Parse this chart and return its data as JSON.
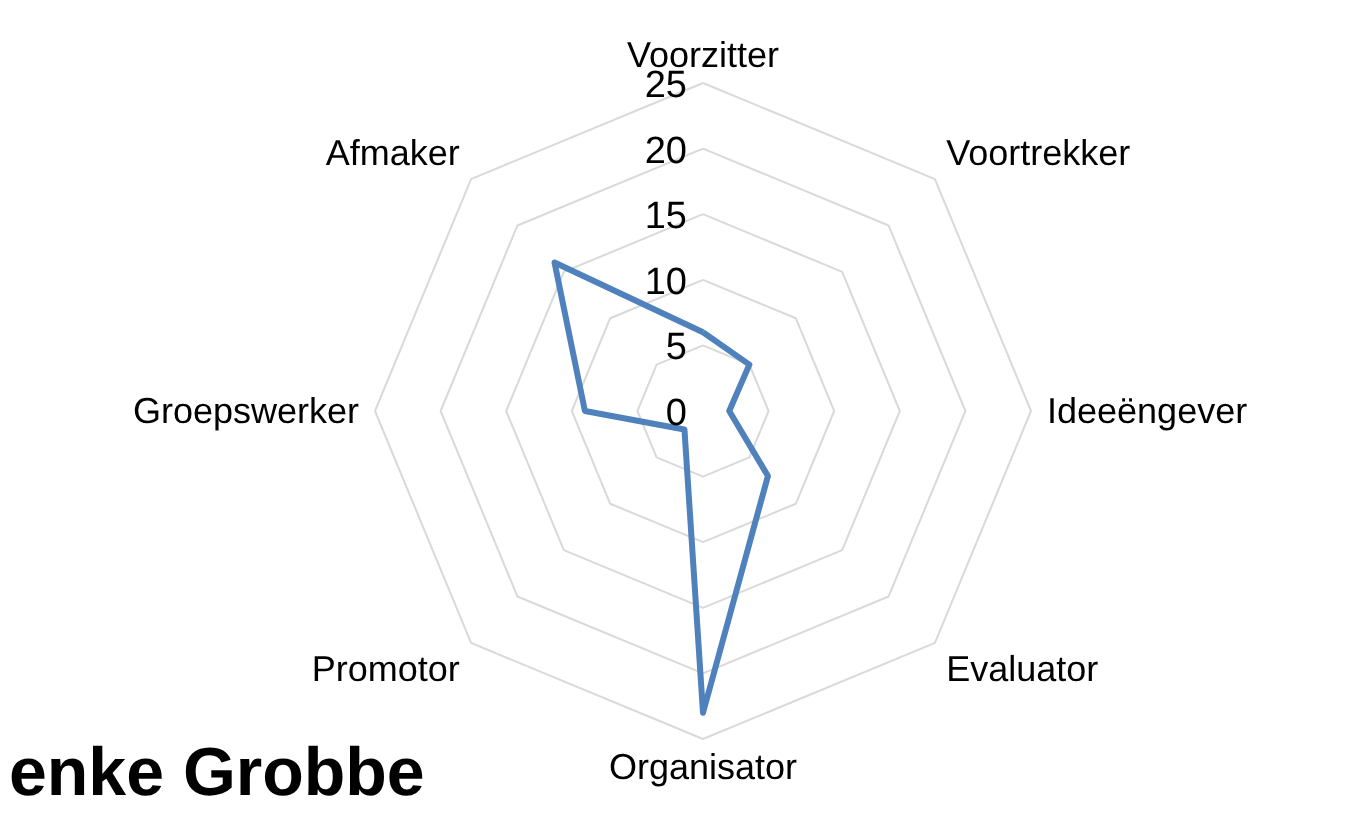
{
  "chart_data": {
    "type": "radar",
    "categories": [
      "Voorzitter",
      "Voortrekker",
      "Ideeëngever",
      "Evaluator",
      "Organisator",
      "Promotor",
      "Groepswerker",
      "Afmaker"
    ],
    "series": [
      {
        "color": "#4f81bd",
        "values": [
          6,
          5,
          2,
          7,
          23,
          2,
          9,
          16
        ]
      }
    ],
    "ylim": [
      0,
      25
    ],
    "yticks": [
      0,
      5,
      10,
      15,
      20,
      25
    ],
    "grid": true,
    "marker": "none",
    "line_style": "solid",
    "annotations": [
      "enke Grobbe"
    ]
  }
}
